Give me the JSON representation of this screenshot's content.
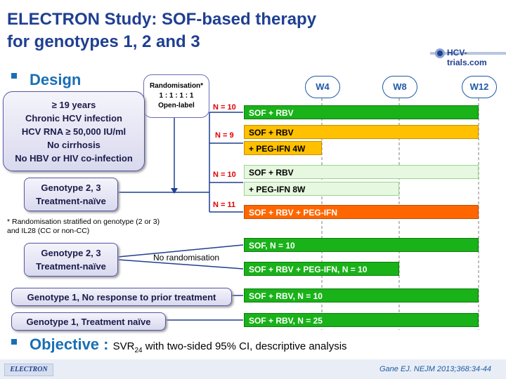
{
  "title": {
    "line1": "ELECTRON Study: SOF-based therapy",
    "line2": "for genotypes 1, 2 and 3"
  },
  "logo": {
    "text": "HCV-trials.com"
  },
  "design": {
    "label": "Design",
    "randomisation": {
      "line1": "Randomisation*",
      "line2": "1 : 1 : 1 : 1",
      "line3": "Open-label"
    },
    "criteria": [
      "≥ 19 years",
      "Chronic HCV infection",
      "HCV RNA ≥ 50,000 IU/ml",
      "No cirrhosis",
      "No HBV or HIV co-infection"
    ],
    "genotype_box_1": {
      "line1": "Genotype 2, 3",
      "line2": "Treatment-naïve"
    },
    "genotype_box_2": {
      "line1": "Genotype 2, 3",
      "line2": "Treatment-naïve"
    },
    "genotype_box_3": "Genotype 1, No response to prior  treatment",
    "genotype_box_4": "Genotype 1, Treatment naïve",
    "no_randomisation": "No randomisation",
    "footnote": {
      "line1": "* Randomisation stratified on genotype (2 or 3)",
      "line2": "and IL28 (CC or non-CC)"
    },
    "weeks": [
      "W4",
      "W8",
      "W12"
    ],
    "arms": [
      {
        "n": "N = 10",
        "bars": [
          "SOF + RBV"
        ]
      },
      {
        "n": "N = 9",
        "bars": [
          "SOF + RBV",
          "+ PEG-IFN  4W"
        ]
      },
      {
        "n": "N = 10",
        "bars": [
          "SOF + RBV",
          "+ PEG-IFN  8W"
        ]
      },
      {
        "n": "N = 11",
        "bars": [
          "SOF + RBV + PEG-IFN"
        ]
      }
    ],
    "nonrand_bars": [
      "SOF, N = 10",
      "SOF + RBV + PEG-IFN, N = 10",
      "SOF + RBV, N = 10",
      "SOF + RBV, N = 25"
    ]
  },
  "colors": {
    "green": "#19b219",
    "orange_yellow": "#ffc000",
    "light_green": "#e6f8df",
    "red_orange": "#ff6600",
    "title_blue": "#1f3f91"
  },
  "objective": {
    "label": "Objective :",
    "text_pre": "SVR",
    "text_sub": "24",
    "text_post": " with two-sided 95% CI, descriptive analysis"
  },
  "footer": {
    "left": "ELECTRON",
    "right": "Gane EJ. NEJM 2013;368:34-44"
  }
}
